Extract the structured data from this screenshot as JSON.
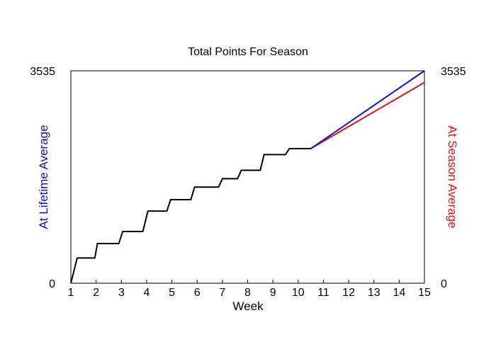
{
  "chart_data": {
    "type": "line",
    "title": "Total Points For Season",
    "xlabel": "Week",
    "ylabel_left": "At Lifetime Average",
    "ylabel_right": "At Season Average",
    "xlim": [
      1,
      15
    ],
    "ylim": [
      0,
      3535
    ],
    "x_ticks": [
      1,
      2,
      3,
      4,
      5,
      6,
      7,
      8,
      9,
      10,
      11,
      12,
      13,
      14,
      15
    ],
    "x_tick_labels": [
      "1",
      "2",
      "3",
      "4",
      "5",
      "6",
      "7",
      "8",
      "9",
      "10",
      "11",
      "12",
      "13",
      "14",
      "15"
    ],
    "y_ticks_left": [
      0,
      3535
    ],
    "y_tick_labels_left": [
      "0",
      "3535"
    ],
    "y_ticks_right": [
      0,
      3535
    ],
    "y_tick_labels_right": [
      "0",
      "3535"
    ],
    "grid": false,
    "colors": {
      "actual": "#000000",
      "lifetime_average": "#1010d0",
      "season_average": "#e01010",
      "ylabel_left": "#1010c0",
      "ylabel_right": "#e01010"
    },
    "series": [
      {
        "key": "actual",
        "points": [
          [
            1.0,
            0
          ],
          [
            1.25,
            420
          ],
          [
            1.95,
            420
          ],
          [
            2.05,
            660
          ],
          [
            2.9,
            660
          ],
          [
            3.05,
            860
          ],
          [
            3.85,
            860
          ],
          [
            4.05,
            1200
          ],
          [
            4.8,
            1200
          ],
          [
            4.95,
            1390
          ],
          [
            5.75,
            1390
          ],
          [
            5.9,
            1600
          ],
          [
            6.85,
            1600
          ],
          [
            7.0,
            1740
          ],
          [
            7.6,
            1740
          ],
          [
            7.75,
            1880
          ],
          [
            8.5,
            1880
          ],
          [
            8.65,
            2140
          ],
          [
            9.5,
            2140
          ],
          [
            9.65,
            2240
          ],
          [
            10.5,
            2240
          ]
        ]
      },
      {
        "key": "lifetime_average",
        "points": [
          [
            10.5,
            2240
          ],
          [
            15.0,
            3535
          ]
        ]
      },
      {
        "key": "season_average",
        "points": [
          [
            10.5,
            2240
          ],
          [
            15.0,
            3340
          ]
        ]
      }
    ]
  }
}
